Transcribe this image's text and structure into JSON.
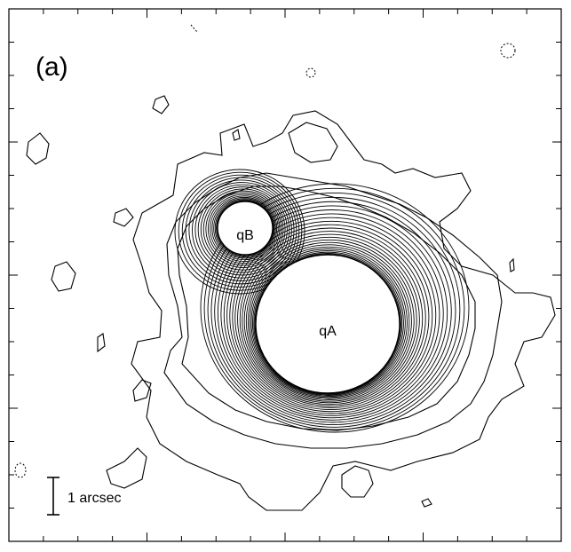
{
  "panel": {
    "label": "(a)"
  },
  "sources": [
    {
      "id": "qA",
      "label": "qA"
    },
    {
      "id": "qB",
      "label": "qB"
    }
  ],
  "scalebar": {
    "label": "1 arcsec"
  },
  "colors": {
    "line": "#000000",
    "background": "#ffffff"
  }
}
